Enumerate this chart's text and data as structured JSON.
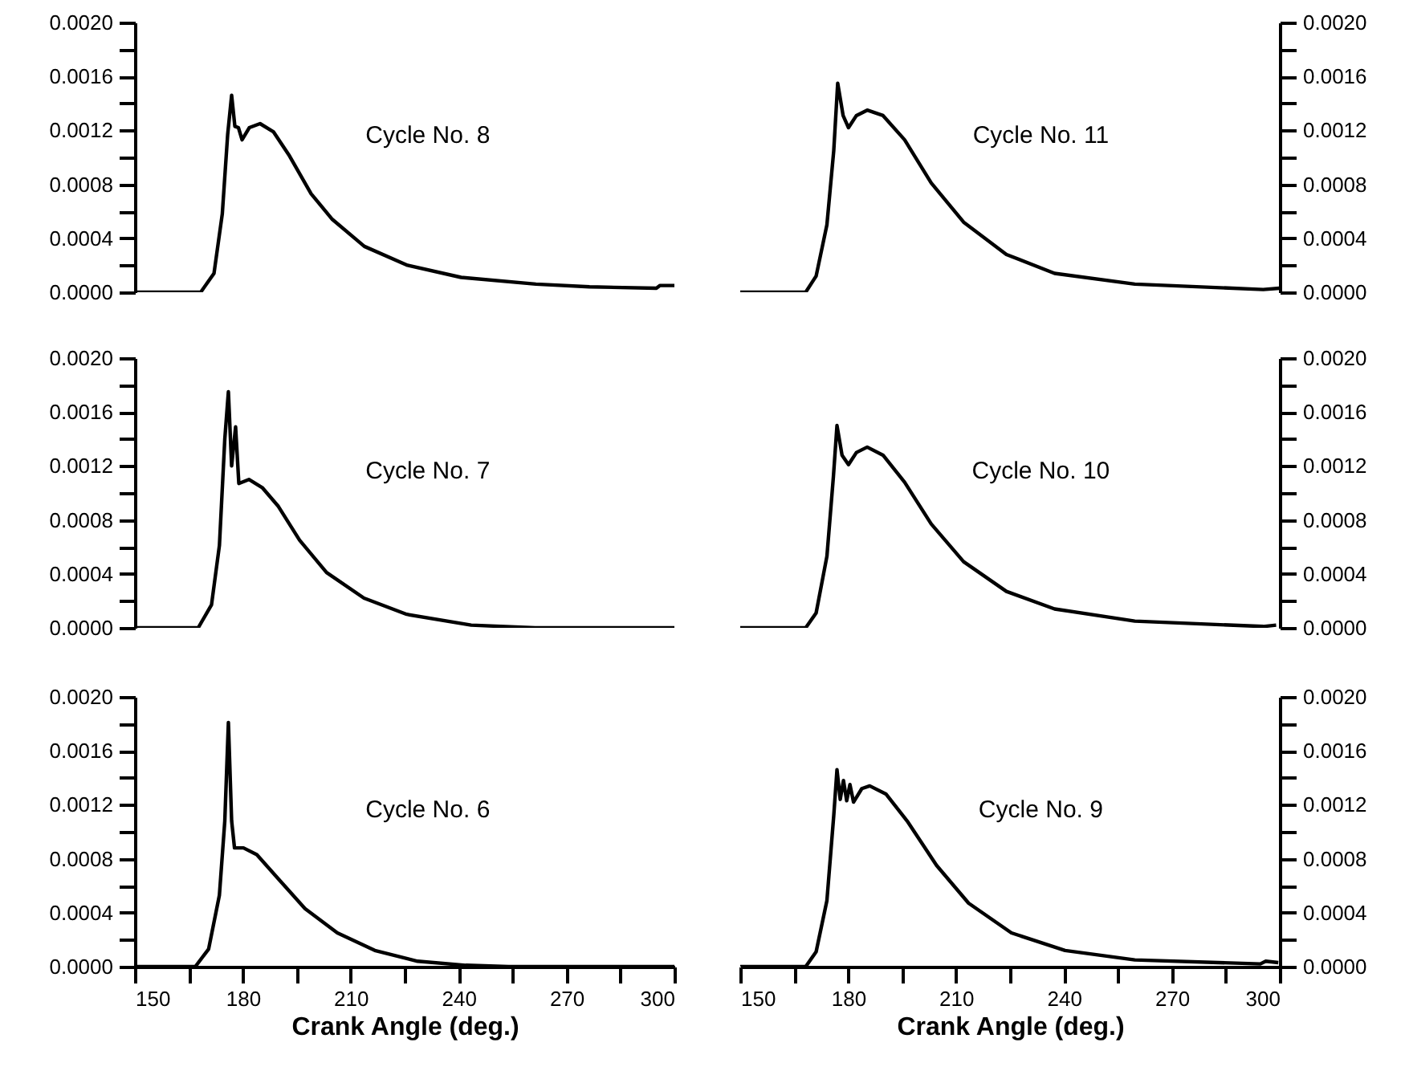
{
  "chart_data": [
    {
      "type": "line",
      "annotations": [
        "Cycle No. 8"
      ],
      "xlim": [
        150,
        300
      ],
      "ylim": [
        0,
        0.002
      ],
      "yticks": [
        {
          "value": 0,
          "label": "0.0000"
        },
        {
          "value": 0.0002,
          "label": null
        },
        {
          "value": 0.0004,
          "label": "0.0004"
        },
        {
          "value": 0.0006,
          "label": null
        },
        {
          "value": 0.0008,
          "label": "0.0008"
        },
        {
          "value": 0.001,
          "label": null
        },
        {
          "value": 0.0012,
          "label": "0.0012"
        },
        {
          "value": 0.0014,
          "label": null
        },
        {
          "value": 0.0016,
          "label": "0.0016"
        },
        {
          "value": 0.0018,
          "label": null
        },
        {
          "value": 0.002,
          "label": "0.0020"
        }
      ],
      "tick_labels": "y",
      "line_style": "solid",
      "x": [
        150,
        168.3,
        172,
        174.3,
        175.8,
        176.9,
        177.8,
        178.8,
        179.8,
        181.8,
        184.8,
        188.5,
        193,
        199,
        204.9,
        213.8,
        225.8,
        240.7,
        261.5,
        276.4,
        295,
        296,
        300
      ],
      "series": [
        {
          "color": "#000000",
          "values": [
            0,
            0,
            0.00014,
            0.00058,
            0.00117,
            0.00146,
            0.00123,
            0.00122,
            0.00113,
            0.00122,
            0.00125,
            0.00119,
            0.00101,
            0.00073,
            0.00054,
            0.00034,
            0.0002,
            0.00011,
            6e-05,
            4e-05,
            3e-05,
            5e-05,
            5e-05
          ]
        }
      ]
    },
    {
      "type": "line",
      "annotations": [
        "Cycle No. 11"
      ],
      "xlim": [
        150,
        300
      ],
      "y2lim": [
        0,
        0.002
      ],
      "y2ticks": [
        {
          "value": 0,
          "label": "0.0000"
        },
        {
          "value": 0.0002,
          "label": null
        },
        {
          "value": 0.0004,
          "label": "0.0004"
        },
        {
          "value": 0.0006,
          "label": null
        },
        {
          "value": 0.0008,
          "label": "0.0008"
        },
        {
          "value": 0.001,
          "label": null
        },
        {
          "value": 0.0012,
          "label": "0.0012"
        },
        {
          "value": 0.0014,
          "label": null
        },
        {
          "value": 0.0016,
          "label": "0.0016"
        },
        {
          "value": 0.0018,
          "label": null
        },
        {
          "value": 0.002,
          "label": "0.0020"
        }
      ],
      "tick_labels": "y2",
      "line_style": "solid",
      "x": [
        150,
        168.2,
        171.1,
        174.1,
        176,
        177.1,
        178.6,
        180.1,
        182.3,
        185.3,
        189.7,
        195.7,
        203.1,
        212.1,
        224,
        237.4,
        259.7,
        295.4,
        299.9
      ],
      "series": [
        {
          "color": "#000000",
          "axis": "y2",
          "values": [
            0,
            0,
            0.00012,
            0.0005,
            0.00105,
            0.00155,
            0.00131,
            0.00122,
            0.00131,
            0.00135,
            0.00131,
            0.00113,
            0.00081,
            0.00052,
            0.00028,
            0.00014,
            6e-05,
            2e-05,
            3e-05
          ]
        }
      ]
    },
    {
      "type": "line",
      "annotations": [
        "Cycle No. 7"
      ],
      "xlim": [
        150,
        300
      ],
      "ylim": [
        0,
        0.002
      ],
      "yticks": [
        {
          "value": 0,
          "label": "0.0000"
        },
        {
          "value": 0.0002,
          "label": null
        },
        {
          "value": 0.0004,
          "label": "0.0004"
        },
        {
          "value": 0.0006,
          "label": null
        },
        {
          "value": 0.0008,
          "label": "0.0008"
        },
        {
          "value": 0.001,
          "label": null
        },
        {
          "value": 0.0012,
          "label": "0.0012"
        },
        {
          "value": 0.0014,
          "label": null
        },
        {
          "value": 0.0016,
          "label": "0.0016"
        },
        {
          "value": 0.0018,
          "label": null
        },
        {
          "value": 0.002,
          "label": "0.0020"
        }
      ],
      "tick_labels": "y",
      "line_style": "solid",
      "x": [
        150,
        167.6,
        171.3,
        173.5,
        175,
        176,
        176.9,
        178,
        178.9,
        181.7,
        185.4,
        189.9,
        195.8,
        203.3,
        213.7,
        225.6,
        243.5,
        261.3,
        300
      ],
      "series": [
        {
          "color": "#000000",
          "values": [
            0,
            0,
            0.00017,
            0.00061,
            0.0014,
            0.00175,
            0.0012,
            0.00149,
            0.00107,
            0.0011,
            0.00104,
            0.0009,
            0.00065,
            0.00041,
            0.00022,
            0.0001,
            2e-05,
            0,
            0
          ]
        }
      ]
    },
    {
      "type": "line",
      "annotations": [
        "Cycle No. 10"
      ],
      "xlim": [
        150,
        300
      ],
      "y2lim": [
        0,
        0.002
      ],
      "y2ticks": [
        {
          "value": 0,
          "label": "0.0000"
        },
        {
          "value": 0.0002,
          "label": null
        },
        {
          "value": 0.0004,
          "label": "0.0004"
        },
        {
          "value": 0.0006,
          "label": null
        },
        {
          "value": 0.0008,
          "label": "0.0008"
        },
        {
          "value": 0.001,
          "label": null
        },
        {
          "value": 0.0012,
          "label": "0.0012"
        },
        {
          "value": 0.0014,
          "label": null
        },
        {
          "value": 0.0016,
          "label": "0.0016"
        },
        {
          "value": 0.0018,
          "label": null
        },
        {
          "value": 0.002,
          "label": "0.0020"
        }
      ],
      "tick_labels": "y2",
      "line_style": "solid",
      "x": [
        150,
        168.2,
        171.1,
        174.1,
        175.9,
        176.9,
        178.3,
        180.1,
        182.3,
        185.3,
        189.7,
        195.7,
        203.1,
        212.1,
        224,
        237.4,
        259.7,
        295.4,
        299
      ],
      "series": [
        {
          "color": "#000000",
          "axis": "y2",
          "values": [
            0,
            0,
            0.00011,
            0.00053,
            0.00112,
            0.0015,
            0.00128,
            0.00121,
            0.0013,
            0.00134,
            0.00128,
            0.00108,
            0.00077,
            0.00049,
            0.00027,
            0.00014,
            5e-05,
            1e-05,
            2e-05
          ]
        }
      ]
    },
    {
      "type": "line",
      "annotations": [
        "Cycle No. 6"
      ],
      "xlabel": "Crank Angle (deg.)",
      "xlim": [
        150,
        300
      ],
      "xticks": [
        150,
        {
          "value": 165,
          "label": null
        },
        180,
        {
          "value": 195,
          "label": null
        },
        210,
        {
          "value": 225,
          "label": null
        },
        240,
        {
          "value": 255,
          "label": null
        },
        270,
        {
          "value": 285,
          "label": null
        },
        300
      ],
      "ylim": [
        0,
        0.002
      ],
      "yticks": [
        {
          "value": 0,
          "label": "0.0000"
        },
        {
          "value": 0.0002,
          "label": null
        },
        {
          "value": 0.0004,
          "label": "0.0004"
        },
        {
          "value": 0.0006,
          "label": null
        },
        {
          "value": 0.0008,
          "label": "0.0008"
        },
        {
          "value": 0.001,
          "label": null
        },
        {
          "value": 0.0012,
          "label": "0.0012"
        },
        {
          "value": 0.0014,
          "label": null
        },
        {
          "value": 0.0016,
          "label": "0.0016"
        },
        {
          "value": 0.0018,
          "label": null
        },
        {
          "value": 0.002,
          "label": "0.0020"
        }
      ],
      "line_style": "solid",
      "x": [
        150,
        166.8,
        170.5,
        173.5,
        175,
        176,
        176.9,
        177.7,
        180.2,
        183.9,
        189.9,
        197.3,
        206.3,
        216.7,
        228.6,
        242,
        253.9,
        300
      ],
      "series": [
        {
          "color": "#000000",
          "values": [
            0,
            0,
            0.00013,
            0.00053,
            0.00108,
            0.00181,
            0.00108,
            0.00088,
            0.00088,
            0.00083,
            0.00065,
            0.00043,
            0.00025,
            0.00012,
            4e-05,
            1e-05,
            0,
            0
          ]
        }
      ]
    },
    {
      "type": "line",
      "annotations": [
        "Cycle No. 9"
      ],
      "xlabel": "Crank Angle (deg.)",
      "xlim": [
        150,
        300
      ],
      "xticks": [
        150,
        {
          "value": 165,
          "label": null
        },
        180,
        {
          "value": 195,
          "label": null
        },
        210,
        {
          "value": 225,
          "label": null
        },
        240,
        {
          "value": 255,
          "label": null
        },
        270,
        {
          "value": 285,
          "label": null
        },
        300
      ],
      "y2lim": [
        0,
        0.002
      ],
      "y2ticks": [
        {
          "value": 0,
          "label": "0.0000"
        },
        {
          "value": 0.0002,
          "label": null
        },
        {
          "value": 0.0004,
          "label": "0.0004"
        },
        {
          "value": 0.0006,
          "label": null
        },
        {
          "value": 0.0008,
          "label": "0.0008"
        },
        {
          "value": 0.001,
          "label": null
        },
        {
          "value": 0.0012,
          "label": "0.0012"
        },
        {
          "value": 0.0014,
          "label": null
        },
        {
          "value": 0.0016,
          "label": "0.0016"
        },
        {
          "value": 0.0018,
          "label": null
        },
        {
          "value": 0.002,
          "label": "0.0020"
        }
      ],
      "line_style": "solid",
      "x": [
        150,
        168.2,
        171.1,
        174.1,
        176,
        176.9,
        177.8,
        178.7,
        179.6,
        180.5,
        181.5,
        183.8,
        186,
        190.5,
        196.4,
        204.6,
        213.5,
        225.4,
        240.3,
        259.7,
        294.6,
        296.1,
        299.6
      ],
      "series": [
        {
          "color": "#000000",
          "axis": "y2",
          "values": [
            0,
            0,
            0.00011,
            0.00049,
            0.00112,
            0.00146,
            0.00124,
            0.00138,
            0.00123,
            0.00135,
            0.00122,
            0.00132,
            0.00134,
            0.00128,
            0.00108,
            0.00075,
            0.00047,
            0.00025,
            0.00012,
            5e-05,
            2e-05,
            4e-05,
            3e-05
          ]
        }
      ]
    }
  ]
}
